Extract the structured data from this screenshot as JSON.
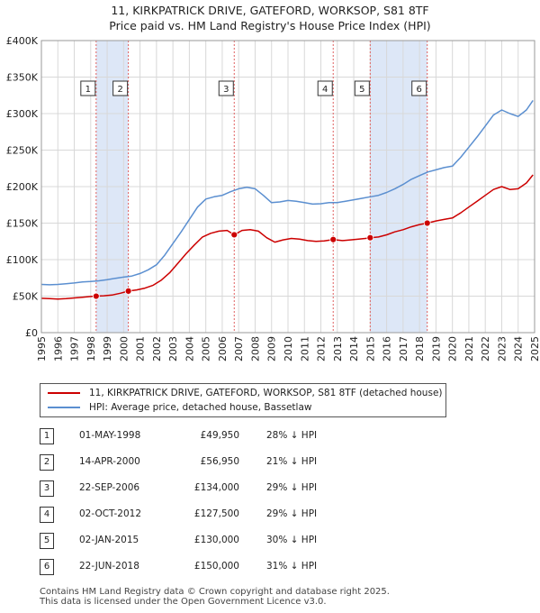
{
  "header": {
    "title_line1": "11, KIRKPATRICK DRIVE, GATEFORD, WORKSOP, S81 8TF",
    "title_line2": "Price paid vs. HM Land Registry's House Price Index (HPI)"
  },
  "colors": {
    "price": "#cc0000",
    "hpi": "#5b8fd0",
    "shade": "#dde7f7",
    "grid": "#d8d8d8",
    "marker_line": "#e06060"
  },
  "chart_data": {
    "type": "line",
    "xlim": [
      1995,
      2025
    ],
    "ylim": [
      0,
      400000
    ],
    "y_ticks": [
      0,
      50000,
      100000,
      150000,
      200000,
      250000,
      300000,
      350000,
      400000
    ],
    "y_tick_labels": [
      "£0",
      "£50K",
      "£100K",
      "£150K",
      "£200K",
      "£250K",
      "£300K",
      "£350K",
      "£400K"
    ],
    "x_ticks": [
      1995,
      1996,
      1997,
      1998,
      1999,
      2000,
      2001,
      2002,
      2003,
      2004,
      2005,
      2006,
      2007,
      2008,
      2009,
      2010,
      2011,
      2012,
      2013,
      2014,
      2015,
      2016,
      2017,
      2018,
      2019,
      2020,
      2021,
      2022,
      2023,
      2024,
      2025
    ],
    "shaded_ranges": [
      [
        1998.33,
        2000.29
      ],
      [
        2015.0,
        2018.47
      ]
    ],
    "series": [
      {
        "name": "11, KIRKPATRICK DRIVE, GATEFORD, WORKSOP, S81 8TF (detached house)",
        "role": "price",
        "points": [
          [
            1995.0,
            47000
          ],
          [
            1995.5,
            46500
          ],
          [
            1996.0,
            46000
          ],
          [
            1996.5,
            46500
          ],
          [
            1997.0,
            47500
          ],
          [
            1997.5,
            48500
          ],
          [
            1998.0,
            49500
          ],
          [
            1998.33,
            49950
          ],
          [
            1998.8,
            50500
          ],
          [
            1999.3,
            51500
          ],
          [
            1999.8,
            54000
          ],
          [
            2000.29,
            56950
          ],
          [
            2000.8,
            58500
          ],
          [
            2001.3,
            61000
          ],
          [
            2001.8,
            65000
          ],
          [
            2002.3,
            72000
          ],
          [
            2002.8,
            82000
          ],
          [
            2003.3,
            95000
          ],
          [
            2003.8,
            108000
          ],
          [
            2004.3,
            120000
          ],
          [
            2004.8,
            131000
          ],
          [
            2005.3,
            136000
          ],
          [
            2005.8,
            139000
          ],
          [
            2006.3,
            140000
          ],
          [
            2006.73,
            134000
          ],
          [
            2007.2,
            140000
          ],
          [
            2007.7,
            141000
          ],
          [
            2008.2,
            139000
          ],
          [
            2008.7,
            130000
          ],
          [
            2009.2,
            124000
          ],
          [
            2009.7,
            127000
          ],
          [
            2010.2,
            129000
          ],
          [
            2010.7,
            128000
          ],
          [
            2011.2,
            126000
          ],
          [
            2011.7,
            125000
          ],
          [
            2012.2,
            125500
          ],
          [
            2012.75,
            127500
          ],
          [
            2013.3,
            126000
          ],
          [
            2013.8,
            127000
          ],
          [
            2014.3,
            128000
          ],
          [
            2014.7,
            129000
          ],
          [
            2015.0,
            130000
          ],
          [
            2015.5,
            131000
          ],
          [
            2016.0,
            134000
          ],
          [
            2016.5,
            138000
          ],
          [
            2017.0,
            141000
          ],
          [
            2017.5,
            145000
          ],
          [
            2018.0,
            148000
          ],
          [
            2018.47,
            150000
          ],
          [
            2019.0,
            153000
          ],
          [
            2019.5,
            155000
          ],
          [
            2020.0,
            157000
          ],
          [
            2020.5,
            164000
          ],
          [
            2021.0,
            172000
          ],
          [
            2021.5,
            180000
          ],
          [
            2022.0,
            188000
          ],
          [
            2022.5,
            196000
          ],
          [
            2023.0,
            200000
          ],
          [
            2023.5,
            196000
          ],
          [
            2024.0,
            197000
          ],
          [
            2024.5,
            205000
          ],
          [
            2024.9,
            216000
          ]
        ]
      },
      {
        "name": "HPI: Average price, detached house, Bassetlaw",
        "role": "hpi",
        "points": [
          [
            1995.0,
            66000
          ],
          [
            1995.5,
            65500
          ],
          [
            1996.0,
            66000
          ],
          [
            1996.5,
            67000
          ],
          [
            1997.0,
            68000
          ],
          [
            1997.5,
            69500
          ],
          [
            1998.0,
            70000
          ],
          [
            1998.5,
            71000
          ],
          [
            1999.0,
            72500
          ],
          [
            1999.5,
            74500
          ],
          [
            2000.0,
            76000
          ],
          [
            2000.5,
            77500
          ],
          [
            2001.0,
            81000
          ],
          [
            2001.5,
            86000
          ],
          [
            2002.0,
            93000
          ],
          [
            2002.5,
            106000
          ],
          [
            2003.0,
            122000
          ],
          [
            2003.5,
            138000
          ],
          [
            2004.0,
            155000
          ],
          [
            2004.5,
            172000
          ],
          [
            2005.0,
            183000
          ],
          [
            2005.5,
            186000
          ],
          [
            2006.0,
            188000
          ],
          [
            2006.5,
            193000
          ],
          [
            2007.0,
            197000
          ],
          [
            2007.5,
            199000
          ],
          [
            2008.0,
            197000
          ],
          [
            2008.5,
            188000
          ],
          [
            2009.0,
            178000
          ],
          [
            2009.5,
            179000
          ],
          [
            2010.0,
            181000
          ],
          [
            2010.5,
            180000
          ],
          [
            2011.0,
            178000
          ],
          [
            2011.5,
            176000
          ],
          [
            2012.0,
            176500
          ],
          [
            2012.5,
            178000
          ],
          [
            2013.0,
            178000
          ],
          [
            2013.5,
            180000
          ],
          [
            2014.0,
            182000
          ],
          [
            2014.5,
            184000
          ],
          [
            2015.0,
            186000
          ],
          [
            2015.5,
            188000
          ],
          [
            2016.0,
            192000
          ],
          [
            2016.5,
            197000
          ],
          [
            2017.0,
            203000
          ],
          [
            2017.5,
            210000
          ],
          [
            2018.0,
            215000
          ],
          [
            2018.5,
            220000
          ],
          [
            2019.0,
            223000
          ],
          [
            2019.5,
            226000
          ],
          [
            2020.0,
            228000
          ],
          [
            2020.5,
            240000
          ],
          [
            2021.0,
            254000
          ],
          [
            2021.5,
            268000
          ],
          [
            2022.0,
            283000
          ],
          [
            2022.5,
            298000
          ],
          [
            2023.0,
            305000
          ],
          [
            2023.5,
            300000
          ],
          [
            2024.0,
            296000
          ],
          [
            2024.5,
            305000
          ],
          [
            2024.9,
            318000
          ]
        ]
      }
    ],
    "sales": [
      {
        "id": "1",
        "x": 1998.33,
        "y": 49950
      },
      {
        "id": "2",
        "x": 2000.29,
        "y": 56950
      },
      {
        "id": "3",
        "x": 2006.73,
        "y": 134000
      },
      {
        "id": "4",
        "x": 2012.75,
        "y": 127500
      },
      {
        "id": "5",
        "x": 2015.0,
        "y": 130000
      },
      {
        "id": "6",
        "x": 2018.47,
        "y": 150000
      }
    ]
  },
  "legend": {
    "price_label": "11, KIRKPATRICK DRIVE, GATEFORD, WORKSOP, S81 8TF (detached house)",
    "hpi_label": "HPI: Average price, detached house, Bassetlaw"
  },
  "transactions": [
    {
      "num": "1",
      "date": "01-MAY-1998",
      "price": "£49,950",
      "hpi": "28% ↓ HPI"
    },
    {
      "num": "2",
      "date": "14-APR-2000",
      "price": "£56,950",
      "hpi": "21% ↓ HPI"
    },
    {
      "num": "3",
      "date": "22-SEP-2006",
      "price": "£134,000",
      "hpi": "29% ↓ HPI"
    },
    {
      "num": "4",
      "date": "02-OCT-2012",
      "price": "£127,500",
      "hpi": "29% ↓ HPI"
    },
    {
      "num": "5",
      "date": "02-JAN-2015",
      "price": "£130,000",
      "hpi": "30% ↓ HPI"
    },
    {
      "num": "6",
      "date": "22-JUN-2018",
      "price": "£150,000",
      "hpi": "31% ↓ HPI"
    }
  ],
  "footer": {
    "line1": "Contains HM Land Registry data © Crown copyright and database right 2025.",
    "line2": "This data is licensed under the Open Government Licence v3.0."
  }
}
